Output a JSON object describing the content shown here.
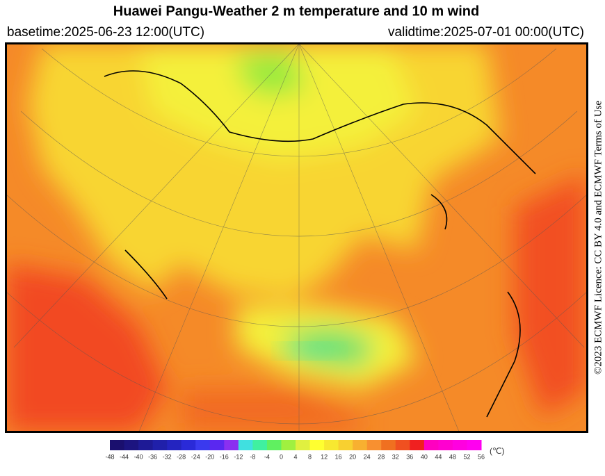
{
  "header": {
    "title": "Huawei Pangu-Weather  2 m temperature and 10 m wind",
    "basetime": "basetime:2025-06-23 12:00(UTC)",
    "validtime": "validtime:2025-07-01 00:00(UTC)"
  },
  "licence": "©2023 ECMWF Licence: CC BY 4.0 and ECMWF Terms of Use",
  "colorbar": {
    "ticks": [
      -48,
      -44,
      -40,
      -36,
      -32,
      -28,
      -24,
      -20,
      -16,
      -12,
      -8,
      -4,
      0,
      4,
      8,
      12,
      16,
      20,
      24,
      28,
      32,
      36,
      40,
      44,
      48,
      52,
      56
    ],
    "colors": [
      "#1a0f6e",
      "#1c1480",
      "#1e1a96",
      "#2020aa",
      "#2424c0",
      "#2a2ad8",
      "#3a3aee",
      "#5a28f0",
      "#8a30f0",
      "#40e0e0",
      "#40f0a0",
      "#60f060",
      "#a0f040",
      "#e0f040",
      "#ffff30",
      "#f8e830",
      "#f8d030",
      "#f8b030",
      "#f89030",
      "#f07020",
      "#f05020",
      "#f02020",
      "#ff00c0",
      "#ff00d0",
      "#ff00e0",
      "#ff00f0"
    ],
    "unit": "(℃)"
  }
}
